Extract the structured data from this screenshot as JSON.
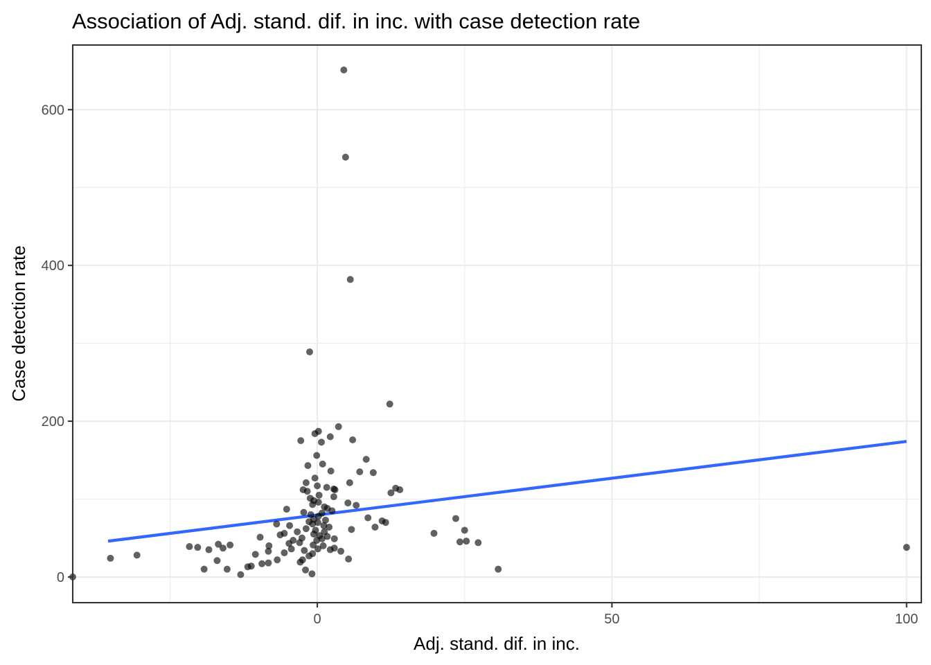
{
  "chart_data": {
    "type": "scatter",
    "title": "Association of Adj. stand. dif. in inc. with case detection rate",
    "xlabel": "Adj. stand. dif. in inc.",
    "ylabel": "Case detection rate",
    "xlim": [
      -41.5,
      102.5
    ],
    "ylim": [
      -33,
      683
    ],
    "x_major_ticks": [
      0,
      50,
      100
    ],
    "x_tick_labels": [
      "0",
      "50",
      "100"
    ],
    "x_minor_ticks": [
      -25,
      25,
      75
    ],
    "y_major_ticks": [
      0,
      200,
      400,
      600
    ],
    "y_tick_labels": [
      "0",
      "200",
      "400",
      "600"
    ],
    "y_minor_ticks": [
      100,
      300,
      500
    ],
    "grid": true,
    "legend": "none",
    "colors": {
      "point": "#000000",
      "point_opacity": 0.62,
      "trend_line": "#3366ff",
      "grid": "#ebebeb",
      "border": "#333333"
    },
    "trend_line": {
      "x": [
        -35.5,
        100
      ],
      "y": [
        46,
        174
      ]
    },
    "points": [
      {
        "x": 4.5,
        "y": 651
      },
      {
        "x": 4.8,
        "y": 539
      },
      {
        "x": 5.6,
        "y": 382
      },
      {
        "x": -1.3,
        "y": 289
      },
      {
        "x": 12.3,
        "y": 222
      },
      {
        "x": 3.6,
        "y": 193
      },
      {
        "x": 0.2,
        "y": 187
      },
      {
        "x": -0.4,
        "y": 184
      },
      {
        "x": 2.2,
        "y": 180
      },
      {
        "x": -2.8,
        "y": 175
      },
      {
        "x": 6.0,
        "y": 176
      },
      {
        "x": 0.7,
        "y": 173
      },
      {
        "x": -0.1,
        "y": 156
      },
      {
        "x": 8.3,
        "y": 151
      },
      {
        "x": 0.9,
        "y": 145
      },
      {
        "x": -1.6,
        "y": 143
      },
      {
        "x": 7.2,
        "y": 135
      },
      {
        "x": 2.3,
        "y": 136
      },
      {
        "x": 9.5,
        "y": 134
      },
      {
        "x": -0.4,
        "y": 127
      },
      {
        "x": -1.9,
        "y": 121
      },
      {
        "x": 5.5,
        "y": 121
      },
      {
        "x": 0.0,
        "y": 117
      },
      {
        "x": 1.6,
        "y": 115
      },
      {
        "x": 2.8,
        "y": 113
      },
      {
        "x": 3.0,
        "y": 112
      },
      {
        "x": 13.3,
        "y": 114
      },
      {
        "x": 14.0,
        "y": 112
      },
      {
        "x": 12.5,
        "y": 108
      },
      {
        "x": -2.4,
        "y": 112
      },
      {
        "x": -1.7,
        "y": 110
      },
      {
        "x": 0.3,
        "y": 105
      },
      {
        "x": -1.2,
        "y": 101
      },
      {
        "x": 2.8,
        "y": 103
      },
      {
        "x": -0.6,
        "y": 98
      },
      {
        "x": 0.2,
        "y": 96
      },
      {
        "x": 5.2,
        "y": 95
      },
      {
        "x": 6.6,
        "y": 92
      },
      {
        "x": -0.8,
        "y": 93
      },
      {
        "x": 1.2,
        "y": 90
      },
      {
        "x": 1.7,
        "y": 88
      },
      {
        "x": -5.2,
        "y": 87
      },
      {
        "x": -2.3,
        "y": 83
      },
      {
        "x": 0.8,
        "y": 82
      },
      {
        "x": 2.5,
        "y": 85
      },
      {
        "x": -1.1,
        "y": 80
      },
      {
        "x": 0.2,
        "y": 78
      },
      {
        "x": 8.6,
        "y": 76
      },
      {
        "x": 11.0,
        "y": 72
      },
      {
        "x": 11.6,
        "y": 70
      },
      {
        "x": 23.5,
        "y": 75
      },
      {
        "x": -0.6,
        "y": 74
      },
      {
        "x": 1.4,
        "y": 73
      },
      {
        "x": -1.4,
        "y": 71
      },
      {
        "x": 0.1,
        "y": 70
      },
      {
        "x": -0.8,
        "y": 68
      },
      {
        "x": 1.1,
        "y": 66
      },
      {
        "x": -6.9,
        "y": 68
      },
      {
        "x": -4.7,
        "y": 66
      },
      {
        "x": 9.8,
        "y": 64
      },
      {
        "x": 2.0,
        "y": 64
      },
      {
        "x": -1.9,
        "y": 62
      },
      {
        "x": 5.8,
        "y": 61
      },
      {
        "x": 25.0,
        "y": 60
      },
      {
        "x": -0.3,
        "y": 60
      },
      {
        "x": 1.2,
        "y": 58
      },
      {
        "x": -3.4,
        "y": 58
      },
      {
        "x": -5.6,
        "y": 56
      },
      {
        "x": 19.8,
        "y": 56
      },
      {
        "x": -0.6,
        "y": 55
      },
      {
        "x": -6.3,
        "y": 54
      },
      {
        "x": 0.4,
        "y": 53
      },
      {
        "x": 1.7,
        "y": 52
      },
      {
        "x": -2.6,
        "y": 50
      },
      {
        "x": 0.8,
        "y": 49
      },
      {
        "x": -4.1,
        "y": 47
      },
      {
        "x": 2.9,
        "y": 49
      },
      {
        "x": -9.7,
        "y": 51
      },
      {
        "x": -0.1,
        "y": 47
      },
      {
        "x": 24.2,
        "y": 45
      },
      {
        "x": 25.3,
        "y": 46
      },
      {
        "x": 27.3,
        "y": 44
      },
      {
        "x": -3.0,
        "y": 44
      },
      {
        "x": -4.8,
        "y": 43
      },
      {
        "x": -0.7,
        "y": 41
      },
      {
        "x": 1.0,
        "y": 40
      },
      {
        "x": -8.2,
        "y": 40
      },
      {
        "x": -16.8,
        "y": 42
      },
      {
        "x": -14.8,
        "y": 41
      },
      {
        "x": -21.7,
        "y": 39
      },
      {
        "x": -20.3,
        "y": 38
      },
      {
        "x": -16.0,
        "y": 37
      },
      {
        "x": 100.0,
        "y": 38
      },
      {
        "x": 2.9,
        "y": 37
      },
      {
        "x": -4.4,
        "y": 36
      },
      {
        "x": 0.1,
        "y": 36
      },
      {
        "x": -18.4,
        "y": 35
      },
      {
        "x": 2.2,
        "y": 35
      },
      {
        "x": -2.2,
        "y": 34
      },
      {
        "x": -8.3,
        "y": 33
      },
      {
        "x": 4.0,
        "y": 33
      },
      {
        "x": -5.6,
        "y": 31
      },
      {
        "x": -0.8,
        "y": 30
      },
      {
        "x": -10.5,
        "y": 29
      },
      {
        "x": -30.6,
        "y": 28
      },
      {
        "x": -1.4,
        "y": 27
      },
      {
        "x": -35.1,
        "y": 24
      },
      {
        "x": -6.8,
        "y": 22
      },
      {
        "x": 5.3,
        "y": 23
      },
      {
        "x": -17.0,
        "y": 21
      },
      {
        "x": -2.5,
        "y": 22
      },
      {
        "x": -2.9,
        "y": 19
      },
      {
        "x": -8.3,
        "y": 18
      },
      {
        "x": -9.4,
        "y": 17
      },
      {
        "x": -11.2,
        "y": 14
      },
      {
        "x": -11.8,
        "y": 13
      },
      {
        "x": -19.2,
        "y": 10
      },
      {
        "x": -15.3,
        "y": 10
      },
      {
        "x": 30.7,
        "y": 10
      },
      {
        "x": -2.0,
        "y": 9
      },
      {
        "x": -0.9,
        "y": 4
      },
      {
        "x": -13.0,
        "y": 3
      },
      {
        "x": -41.5,
        "y": 0
      }
    ]
  }
}
